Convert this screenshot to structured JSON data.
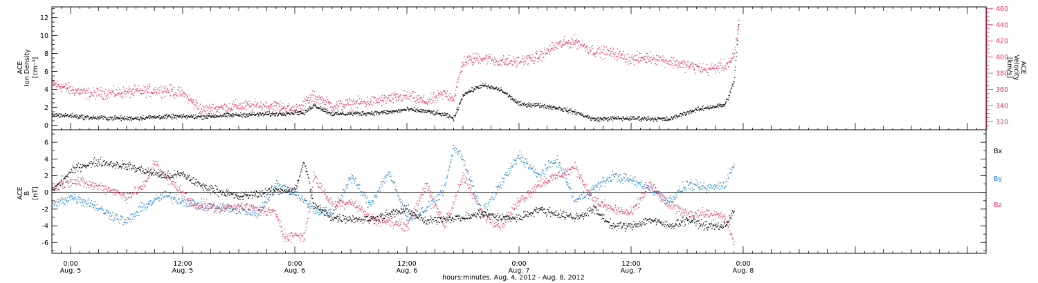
{
  "colors": {
    "black": "#000000",
    "pink": "#e8325a",
    "blue": "#1e7fd6"
  },
  "x_axis": {
    "label": "hours:minutes, Aug. 4, 2012 - Aug. 8, 2012",
    "range_hours": [
      -2,
      98
    ],
    "ticks": [
      {
        "hour": 0,
        "time": "0:00",
        "date": "Aug. 5"
      },
      {
        "hour": 12,
        "time": "12:00",
        "date": "Aug. 5"
      },
      {
        "hour": 24,
        "time": "0:00",
        "date": "Aug. 6"
      },
      {
        "hour": 36,
        "time": "12:00",
        "date": "Aug. 6"
      },
      {
        "hour": 48,
        "time": "0:00",
        "date": "Aug. 7"
      },
      {
        "hour": 60,
        "time": "12:00",
        "date": "Aug. 7"
      },
      {
        "hour": 72,
        "time": "0:00",
        "date": "Aug. 8"
      }
    ]
  },
  "chart_data": [
    {
      "type": "scatter",
      "panel": "top",
      "ylabel_left": [
        "ACE",
        "Ion Density",
        "[cm⁻³]"
      ],
      "ylabel_right": [
        "ACE",
        "Velocity",
        "[km/s]"
      ],
      "ylim_left": [
        -0.5,
        13.2
      ],
      "ylim_right": [
        310,
        462
      ],
      "yticks_left": [
        0,
        2,
        4,
        6,
        8,
        10,
        12
      ],
      "yticks_right": [
        320,
        340,
        360,
        380,
        400,
        420,
        440,
        460
      ],
      "series": [
        {
          "axis": "left",
          "color": "#000000",
          "x": [
            -2,
            0,
            2,
            6,
            10,
            14,
            18,
            22,
            24,
            25,
            26,
            28,
            32,
            34,
            36,
            38,
            40,
            41,
            42,
            44,
            46,
            48,
            50,
            52,
            54,
            56,
            58,
            60,
            62,
            64,
            66,
            68,
            70,
            70.5,
            71,
            71.5
          ],
          "y": [
            1.2,
            1.1,
            0.9,
            0.8,
            1.0,
            1.0,
            1.2,
            1.3,
            1.5,
            1.4,
            2.3,
            1.3,
            1.4,
            1.5,
            1.8,
            1.6,
            1.2,
            0.8,
            3.5,
            4.5,
            4.0,
            2.4,
            2.3,
            2.0,
            1.5,
            0.7,
            0.8,
            0.8,
            0.8,
            0.7,
            1.5,
            2.0,
            2.3,
            3.5,
            5.0,
            11.5
          ]
        },
        {
          "axis": "right",
          "color": "#e8325a",
          "x": [
            -2,
            0,
            2,
            6,
            10,
            12,
            14,
            18,
            22,
            24,
            26,
            28,
            32,
            36,
            38,
            40,
            41,
            42,
            44,
            46,
            48,
            50,
            52,
            54,
            56,
            58,
            60,
            62,
            64,
            66,
            68,
            70,
            71,
            71.5
          ],
          "y": [
            368,
            360,
            355,
            357,
            360,
            355,
            335,
            340,
            340,
            335,
            352,
            340,
            345,
            352,
            345,
            355,
            350,
            395,
            400,
            395,
            395,
            400,
            415,
            420,
            408,
            405,
            398,
            400,
            395,
            390,
            385,
            390,
            400,
            445
          ]
        }
      ]
    },
    {
      "type": "scatter",
      "panel": "bottom",
      "ylabel": [
        "ACE",
        "B",
        "[nT]"
      ],
      "ylim": [
        -7.3,
        7.5
      ],
      "yticks": [
        -6,
        -4,
        -2,
        0,
        2,
        4,
        6
      ],
      "series": [
        {
          "name": "Bx",
          "color": "#000000",
          "x": [
            -2,
            0,
            1,
            3,
            6,
            10,
            12,
            14,
            18,
            22,
            24,
            25,
            26,
            28,
            32,
            36,
            38,
            40,
            42,
            44,
            46,
            48,
            50,
            52,
            54,
            56,
            58,
            60,
            62,
            64,
            66,
            68,
            70,
            71
          ],
          "y": [
            0.2,
            2.5,
            3.2,
            3.7,
            3.2,
            2.0,
            2.2,
            0.8,
            -0.5,
            0.3,
            0.3,
            3.8,
            -1.5,
            -3.0,
            -3.2,
            -2.0,
            -3.5,
            -3.0,
            -3.0,
            -2.5,
            -3.0,
            -3.0,
            -2.0,
            -2.5,
            -3.0,
            -2.0,
            -4.0,
            -4.0,
            -3.2,
            -4.0,
            -3.2,
            -4.0,
            -4.0,
            -2.0
          ]
        },
        {
          "name": "By",
          "color": "#1e7fd6",
          "x": [
            -2,
            0,
            2,
            4,
            6,
            8,
            10,
            12,
            14,
            18,
            20,
            22,
            24,
            26,
            28,
            30,
            32,
            34,
            36,
            38,
            40,
            41,
            42,
            44,
            46,
            48,
            50,
            52,
            54,
            56,
            58,
            60,
            62,
            64,
            66,
            68,
            70,
            71
          ],
          "y": [
            -1.5,
            -0.5,
            -1.2,
            -2.5,
            -3.5,
            -1.5,
            -0.3,
            -1.0,
            -1.5,
            -2.0,
            -2.5,
            1.0,
            0.0,
            -2.0,
            -2.5,
            2.0,
            -1.5,
            2.5,
            -3.0,
            -2.0,
            0.5,
            5.5,
            4.0,
            -2.5,
            1.0,
            4.5,
            2.0,
            4.0,
            -1.0,
            0.5,
            2.0,
            1.5,
            0.5,
            -1.0,
            1.0,
            0.5,
            1.0,
            3.5
          ]
        },
        {
          "name": "Bz",
          "color": "#e8325a",
          "x": [
            -2,
            0,
            2,
            4,
            6,
            8,
            9,
            10,
            12,
            13,
            14,
            16,
            18,
            20,
            22,
            23,
            24,
            25,
            26,
            28,
            30,
            32,
            34,
            36,
            38,
            40,
            42,
            44,
            46,
            48,
            50,
            52,
            54,
            56,
            58,
            60,
            62,
            64,
            66,
            68,
            70,
            71
          ],
          "y": [
            0.5,
            1.5,
            1.0,
            0.5,
            -0.5,
            1.0,
            3.8,
            2.0,
            0.0,
            -1.5,
            -1.5,
            -2.0,
            -1.5,
            -2.0,
            -2.5,
            -5.5,
            -5.0,
            -5.3,
            2.0,
            -1.5,
            -1.0,
            -3.0,
            -3.5,
            -4.0,
            1.0,
            -4.0,
            2.0,
            -2.5,
            -4.0,
            -1.0,
            1.0,
            2.0,
            3.0,
            -1.0,
            -2.0,
            -2.5,
            1.0,
            -1.5,
            -2.5,
            -2.5,
            -3.0,
            -6.0
          ]
        }
      ]
    }
  ]
}
